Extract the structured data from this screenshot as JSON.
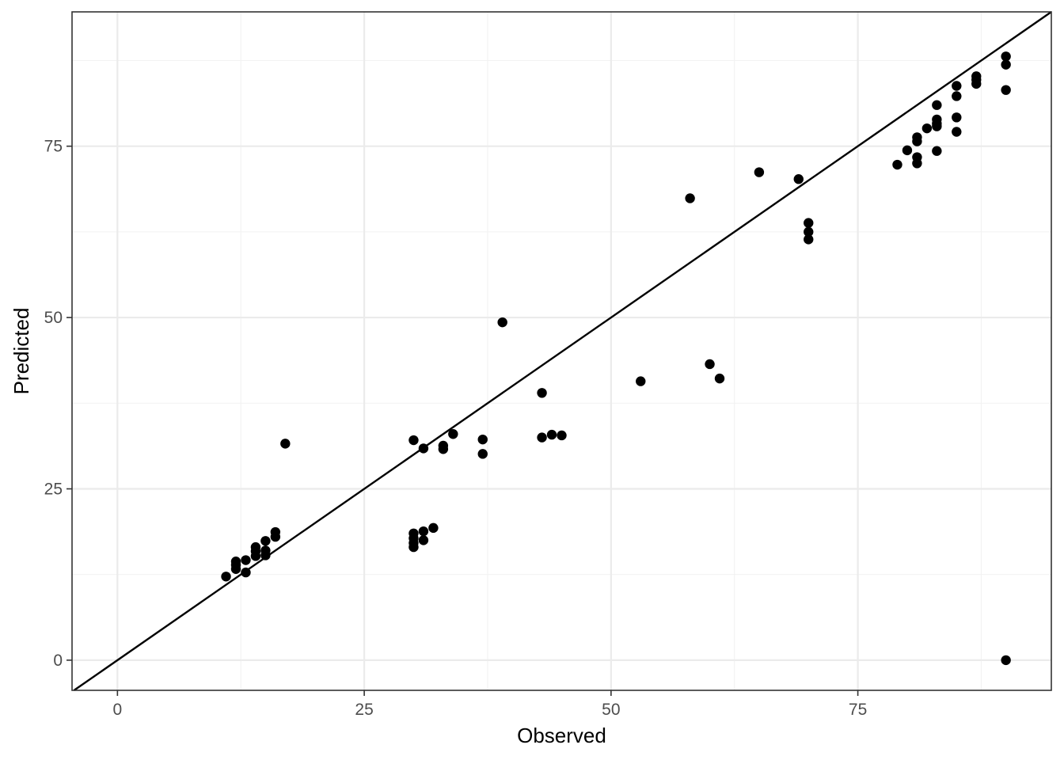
{
  "chart_data": {
    "type": "scatter",
    "title": "",
    "xlabel": "Observed",
    "ylabel": "Predicted",
    "xlim": [
      -4.6,
      94.6
    ],
    "ylim": [
      -4.4,
      94.6
    ],
    "x_ticks": [
      0,
      25,
      50,
      75
    ],
    "y_ticks": [
      0,
      25,
      50,
      75
    ],
    "x_tick_labels": [
      "0",
      "25",
      "50",
      "75"
    ],
    "y_tick_labels": [
      "0",
      "25",
      "50",
      "75"
    ],
    "grid": true,
    "theme": "bw",
    "reference_line": {
      "type": "identity",
      "slope": 1,
      "intercept": 0,
      "color": "#000000"
    },
    "point_color": "#000000",
    "points": [
      {
        "x": 11,
        "y": 12.2
      },
      {
        "x": 12,
        "y": 13.3
      },
      {
        "x": 12,
        "y": 13.9
      },
      {
        "x": 12,
        "y": 14.4
      },
      {
        "x": 13,
        "y": 12.8
      },
      {
        "x": 13,
        "y": 14.6
      },
      {
        "x": 14,
        "y": 15.2
      },
      {
        "x": 14,
        "y": 15.9
      },
      {
        "x": 14,
        "y": 16.5
      },
      {
        "x": 15,
        "y": 15.3
      },
      {
        "x": 15,
        "y": 16.0
      },
      {
        "x": 15,
        "y": 17.4
      },
      {
        "x": 16,
        "y": 18.0
      },
      {
        "x": 16,
        "y": 18.7
      },
      {
        "x": 17,
        "y": 31.6
      },
      {
        "x": 30,
        "y": 16.5
      },
      {
        "x": 30,
        "y": 17.1
      },
      {
        "x": 30,
        "y": 17.8
      },
      {
        "x": 30,
        "y": 18.5
      },
      {
        "x": 30,
        "y": 32.1
      },
      {
        "x": 31,
        "y": 17.5
      },
      {
        "x": 31,
        "y": 18.8
      },
      {
        "x": 31,
        "y": 30.9
      },
      {
        "x": 32,
        "y": 19.3
      },
      {
        "x": 33,
        "y": 30.8
      },
      {
        "x": 33,
        "y": 31.3
      },
      {
        "x": 34,
        "y": 33.0
      },
      {
        "x": 37,
        "y": 30.1
      },
      {
        "x": 37,
        "y": 32.2
      },
      {
        "x": 39,
        "y": 49.3
      },
      {
        "x": 43,
        "y": 32.5
      },
      {
        "x": 43,
        "y": 39.0
      },
      {
        "x": 44,
        "y": 32.9
      },
      {
        "x": 45,
        "y": 32.8
      },
      {
        "x": 53,
        "y": 40.7
      },
      {
        "x": 58,
        "y": 67.4
      },
      {
        "x": 60,
        "y": 43.2
      },
      {
        "x": 61,
        "y": 41.1
      },
      {
        "x": 65,
        "y": 71.2
      },
      {
        "x": 69,
        "y": 70.2
      },
      {
        "x": 70,
        "y": 61.4
      },
      {
        "x": 70,
        "y": 62.5
      },
      {
        "x": 70,
        "y": 63.8
      },
      {
        "x": 79,
        "y": 72.3
      },
      {
        "x": 80,
        "y": 74.4
      },
      {
        "x": 81,
        "y": 72.5
      },
      {
        "x": 81,
        "y": 73.4
      },
      {
        "x": 81,
        "y": 75.7
      },
      {
        "x": 81,
        "y": 76.3
      },
      {
        "x": 82,
        "y": 77.6
      },
      {
        "x": 83,
        "y": 74.3
      },
      {
        "x": 83,
        "y": 77.9
      },
      {
        "x": 83,
        "y": 78.3
      },
      {
        "x": 83,
        "y": 78.9
      },
      {
        "x": 83,
        "y": 81.0
      },
      {
        "x": 85,
        "y": 77.1
      },
      {
        "x": 85,
        "y": 79.2
      },
      {
        "x": 85,
        "y": 82.3
      },
      {
        "x": 85,
        "y": 83.8
      },
      {
        "x": 87,
        "y": 84.1
      },
      {
        "x": 87,
        "y": 84.7
      },
      {
        "x": 87,
        "y": 85.2
      },
      {
        "x": 90,
        "y": 0.0
      },
      {
        "x": 90,
        "y": 83.2
      },
      {
        "x": 90,
        "y": 86.9
      },
      {
        "x": 90,
        "y": 88.1
      }
    ]
  }
}
